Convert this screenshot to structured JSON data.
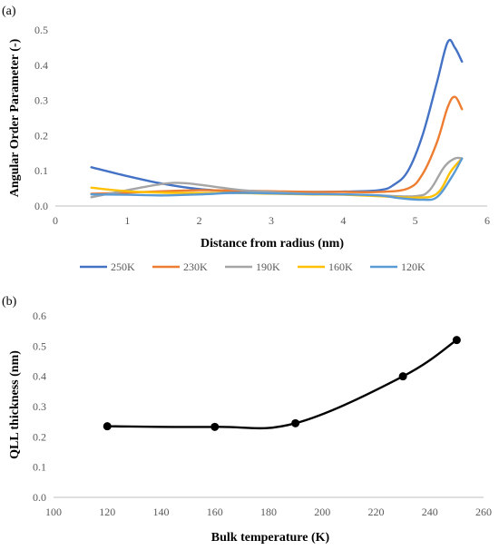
{
  "chart_data": [
    {
      "panel": "(a)",
      "type": "line",
      "xlabel": "Distance from radius (nm)",
      "ylabel": "Angular Order Parameter (-)",
      "xlim": [
        0,
        6
      ],
      "ylim": [
        0,
        0.5
      ],
      "xticks": [
        "0",
        "1",
        "2",
        "3",
        "4",
        "5",
        "6"
      ],
      "yticks": [
        "0.0",
        "0.1",
        "0.2",
        "0.3",
        "0.4",
        "0.5"
      ],
      "grid": false,
      "legend": "bottom",
      "series": [
        {
          "name": "250K",
          "color": "#4472C4",
          "x": [
            0.5,
            1.0,
            1.5,
            2.0,
            2.5,
            3.0,
            3.5,
            4.0,
            4.5,
            4.7,
            4.9,
            5.1,
            5.3,
            5.45,
            5.55,
            5.65
          ],
          "y": [
            0.11,
            0.085,
            0.063,
            0.048,
            0.042,
            0.04,
            0.04,
            0.041,
            0.045,
            0.06,
            0.1,
            0.2,
            0.35,
            0.465,
            0.45,
            0.41
          ]
        },
        {
          "name": "230K",
          "color": "#ED7D31",
          "x": [
            0.5,
            1.0,
            1.5,
            2.0,
            2.5,
            3.0,
            3.5,
            4.0,
            4.5,
            4.9,
            5.1,
            5.3,
            5.45,
            5.55,
            5.65
          ],
          "y": [
            0.035,
            0.038,
            0.042,
            0.045,
            0.044,
            0.042,
            0.04,
            0.04,
            0.04,
            0.05,
            0.09,
            0.18,
            0.28,
            0.31,
            0.275
          ]
        },
        {
          "name": "190K",
          "color": "#A5A5A5",
          "x": [
            0.5,
            1.0,
            1.5,
            1.8,
            2.2,
            2.6,
            3.0,
            3.5,
            4.0,
            4.5,
            5.0,
            5.2,
            5.4,
            5.55,
            5.65
          ],
          "y": [
            0.025,
            0.045,
            0.063,
            0.065,
            0.055,
            0.045,
            0.04,
            0.035,
            0.033,
            0.03,
            0.028,
            0.045,
            0.11,
            0.135,
            0.135
          ]
        },
        {
          "name": "160K",
          "color": "#FFC000",
          "x": [
            0.5,
            1.0,
            1.5,
            2.0,
            2.5,
            3.0,
            3.5,
            4.0,
            4.5,
            5.0,
            5.3,
            5.5,
            5.65
          ],
          "y": [
            0.052,
            0.042,
            0.038,
            0.037,
            0.037,
            0.035,
            0.033,
            0.032,
            0.028,
            0.024,
            0.035,
            0.1,
            0.135
          ]
        },
        {
          "name": "120K",
          "color": "#5B9BD5",
          "x": [
            0.5,
            1.0,
            1.5,
            2.0,
            2.5,
            3.0,
            3.5,
            4.0,
            4.5,
            4.8,
            5.1,
            5.3,
            5.5,
            5.65
          ],
          "y": [
            0.033,
            0.032,
            0.03,
            0.033,
            0.037,
            0.036,
            0.034,
            0.033,
            0.03,
            0.022,
            0.018,
            0.025,
            0.08,
            0.135
          ]
        }
      ]
    },
    {
      "panel": "(b)",
      "type": "line",
      "xlabel": "Bulk temperature (K)",
      "ylabel": "QLL thickness (nm)",
      "xlim": [
        100,
        260
      ],
      "ylim": [
        0,
        0.6
      ],
      "xticks": [
        "100",
        "120",
        "140",
        "160",
        "180",
        "200",
        "220",
        "240",
        "260"
      ],
      "yticks": [
        "0.0",
        "0.1",
        "0.2",
        "0.3",
        "0.4",
        "0.5",
        "0.6"
      ],
      "grid": false,
      "series": [
        {
          "name": "",
          "color": "#000000",
          "markers": true,
          "x": [
            120,
            160,
            190,
            230,
            250
          ],
          "y": [
            0.235,
            0.233,
            0.245,
            0.4,
            0.52
          ]
        }
      ]
    }
  ]
}
